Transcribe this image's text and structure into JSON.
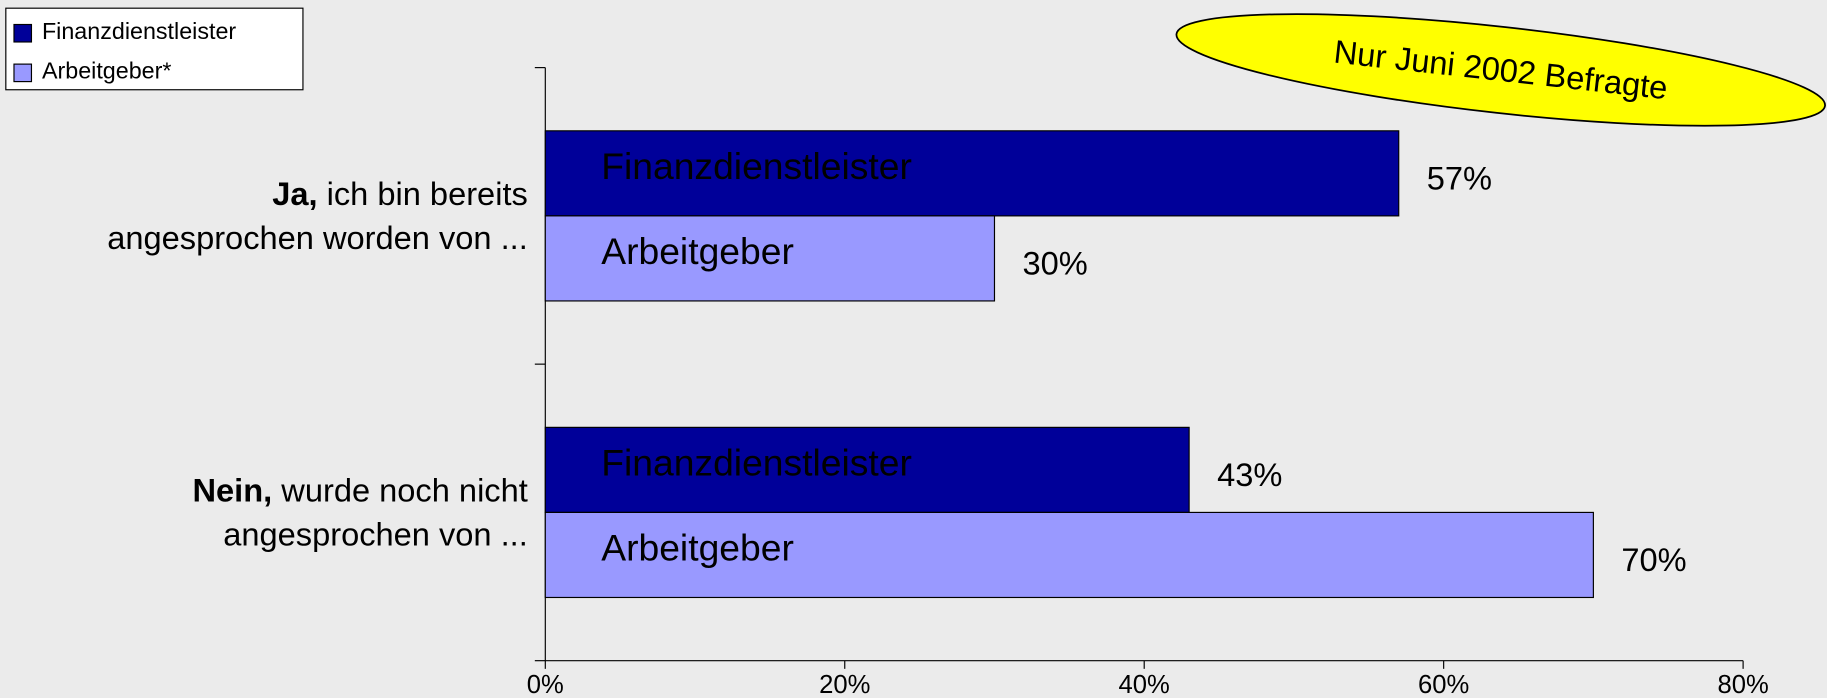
{
  "chart_data": {
    "type": "bar",
    "orientation": "horizontal",
    "categories": [
      {
        "bold": "Ja,",
        "lines": [
          "ich bin bereits",
          "angesprochen worden von ..."
        ]
      },
      {
        "bold": "Nein,",
        "lines": [
          "wurde noch nicht",
          "angesprochen von ..."
        ]
      }
    ],
    "series": [
      {
        "name": "Finanzdienstleister",
        "bar_label": "Finanzdienstleister",
        "color": "#000099",
        "text_color": "#ffffff",
        "values": [
          57,
          43
        ],
        "value_labels": [
          "57%",
          "43%"
        ]
      },
      {
        "name": "Arbeitgeber*",
        "bar_label": "Arbeitgeber",
        "color": "#9999ff",
        "text_color": "#000000",
        "values": [
          30,
          70
        ],
        "value_labels": [
          "30%",
          "70%"
        ]
      }
    ],
    "xlim": [
      0,
      80
    ],
    "xticks": [
      {
        "value": 0,
        "label": "0%"
      },
      {
        "value": 20,
        "label": "20%"
      },
      {
        "value": 40,
        "label": "40%"
      },
      {
        "value": 60,
        "label": "60%"
      },
      {
        "value": 80,
        "label": "80%"
      }
    ],
    "annotation": "Nur Juni 2002 Befragte",
    "legend": "top-left"
  }
}
